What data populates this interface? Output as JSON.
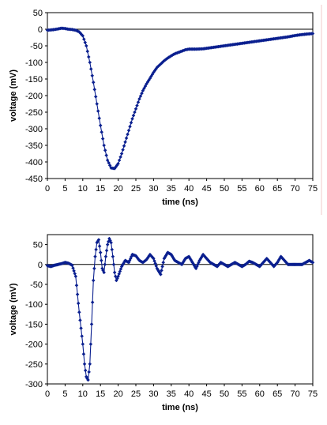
{
  "chart_data": [
    {
      "type": "scatter",
      "xlabel": "time (ns)",
      "ylabel": "voltage (mV)",
      "xlim": [
        0,
        75
      ],
      "ylim": [
        -450,
        50
      ],
      "xticks": [
        0,
        5,
        10,
        15,
        20,
        25,
        30,
        35,
        40,
        45,
        50,
        55,
        60,
        65,
        70,
        75
      ],
      "yticks": [
        50,
        0,
        -50,
        -100,
        -150,
        -200,
        -250,
        -300,
        -350,
        -400,
        -450
      ],
      "grid": false,
      "marker_color": "#0a1f8f",
      "series": [
        {
          "x": [
            0,
            1,
            2,
            3,
            4,
            5,
            6,
            7,
            8,
            9,
            10,
            11,
            12,
            13,
            14,
            15,
            16,
            17,
            18,
            19,
            20,
            21,
            22,
            23,
            24,
            25,
            26,
            27,
            28,
            29,
            30,
            31,
            32,
            33,
            34,
            35,
            36,
            37,
            38,
            39,
            40,
            42,
            44,
            46,
            48,
            50,
            52,
            54,
            56,
            58,
            60,
            62,
            64,
            66,
            68,
            70,
            72,
            74,
            75
          ],
          "y": [
            -3,
            -2,
            -1,
            1,
            3,
            2,
            0,
            -1,
            -3,
            -8,
            -20,
            -50,
            -100,
            -160,
            -225,
            -290,
            -350,
            -395,
            -418,
            -420,
            -405,
            -375,
            -340,
            -305,
            -270,
            -240,
            -210,
            -185,
            -165,
            -148,
            -130,
            -115,
            -105,
            -95,
            -87,
            -80,
            -74,
            -70,
            -66,
            -62,
            -60,
            -60,
            -59,
            -56,
            -53,
            -50,
            -47,
            -44,
            -41,
            -38,
            -35,
            -32,
            -29,
            -26,
            -23,
            -19,
            -16,
            -14,
            -13
          ]
        }
      ]
    },
    {
      "type": "scatter",
      "xlabel": "time (ns)",
      "ylabel": "voltage (mV)",
      "xlim": [
        0,
        75
      ],
      "ylim": [
        -300,
        75
      ],
      "xticks": [
        0,
        5,
        10,
        15,
        20,
        25,
        30,
        35,
        40,
        45,
        50,
        55,
        60,
        65,
        70,
        75
      ],
      "yticks": [
        50,
        0,
        -50,
        -100,
        -150,
        -200,
        -250,
        -300
      ],
      "grid": false,
      "marker_color": "#0a1f8f",
      "series": [
        {
          "x": [
            0,
            1,
            2,
            3,
            4,
            5,
            6,
            7,
            8,
            9,
            10,
            10.5,
            11,
            11.5,
            12,
            12.5,
            13,
            13.5,
            14,
            14.5,
            15,
            15.5,
            16,
            16.5,
            17,
            17.5,
            18,
            18.5,
            19,
            19.5,
            20,
            21,
            22,
            23,
            24,
            25,
            26,
            27,
            28,
            29,
            30,
            31,
            32,
            33,
            34,
            35,
            36,
            37,
            38,
            39,
            40,
            41,
            42,
            43,
            44,
            45,
            46,
            47,
            48,
            49,
            50,
            51,
            52,
            53,
            54,
            55,
            56,
            57,
            58,
            59,
            60,
            61,
            62,
            63,
            64,
            65,
            66,
            67,
            68,
            69,
            70,
            71,
            72,
            73,
            74,
            75
          ],
          "y": [
            -3,
            -5,
            -2,
            0,
            2,
            5,
            3,
            -2,
            -30,
            -120,
            -200,
            -250,
            -282,
            -290,
            -250,
            -150,
            -40,
            20,
            55,
            62,
            30,
            -10,
            -20,
            20,
            50,
            65,
            55,
            20,
            -20,
            -40,
            -30,
            -5,
            10,
            5,
            25,
            22,
            10,
            5,
            12,
            25,
            15,
            -10,
            -25,
            15,
            30,
            25,
            10,
            5,
            0,
            15,
            20,
            5,
            -10,
            10,
            25,
            15,
            5,
            0,
            -5,
            5,
            0,
            -5,
            0,
            5,
            0,
            -5,
            0,
            8,
            5,
            0,
            -5,
            5,
            15,
            5,
            -5,
            5,
            20,
            10,
            0,
            0,
            0,
            0,
            0,
            5,
            10,
            5
          ]
        }
      ]
    }
  ]
}
